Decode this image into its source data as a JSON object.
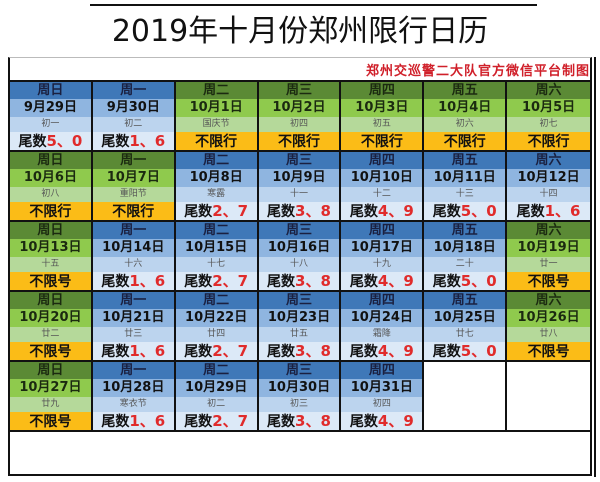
{
  "header": {
    "title": "2019年十月份郑州限行日历",
    "credit": "郑州交巡警二大队官方微信平台制图"
  },
  "colors": {
    "restricted_header": "#3f78b8",
    "restricted_date": "#8fb5e0",
    "free_header": "#5b8a35",
    "free_date": "#8fca4d",
    "free_status": "#fbbc17",
    "plate_number": "#e02b2b",
    "credit": "#d0202a"
  },
  "calendar": {
    "rows": [
      [
        {
          "weekday": "周日",
          "date": "9月29日",
          "lunar": "初一",
          "theme": "blue",
          "prefix": "尾数",
          "nums": "5、0"
        },
        {
          "weekday": "周一",
          "date": "9月30日",
          "lunar": "初二",
          "theme": "blue",
          "prefix": "尾数",
          "nums": "1、6"
        },
        {
          "weekday": "周二",
          "date": "10月1日",
          "lunar": "国庆节",
          "theme": "green",
          "prefix": "不限行",
          "nums": ""
        },
        {
          "weekday": "周三",
          "date": "10月2日",
          "lunar": "初四",
          "theme": "green",
          "prefix": "不限行",
          "nums": ""
        },
        {
          "weekday": "周四",
          "date": "10月3日",
          "lunar": "初五",
          "theme": "green",
          "prefix": "不限行",
          "nums": ""
        },
        {
          "weekday": "周五",
          "date": "10月4日",
          "lunar": "初六",
          "theme": "green",
          "prefix": "不限行",
          "nums": ""
        },
        {
          "weekday": "周六",
          "date": "10月5日",
          "lunar": "初七",
          "theme": "green",
          "prefix": "不限行",
          "nums": ""
        }
      ],
      [
        {
          "weekday": "周日",
          "date": "10月6日",
          "lunar": "初八",
          "theme": "green",
          "prefix": "不限行",
          "nums": ""
        },
        {
          "weekday": "周一",
          "date": "10月7日",
          "lunar": "重阳节",
          "theme": "green",
          "prefix": "不限行",
          "nums": ""
        },
        {
          "weekday": "周二",
          "date": "10月8日",
          "lunar": "寒露",
          "theme": "blue",
          "prefix": "尾数",
          "nums": "2、7"
        },
        {
          "weekday": "周三",
          "date": "10月9日",
          "lunar": "十一",
          "theme": "blue",
          "prefix": "尾数",
          "nums": "3、8"
        },
        {
          "weekday": "周四",
          "date": "10月10日",
          "lunar": "十二",
          "theme": "blue",
          "prefix": "尾数",
          "nums": "4、9"
        },
        {
          "weekday": "周五",
          "date": "10月11日",
          "lunar": "十三",
          "theme": "blue",
          "prefix": "尾数",
          "nums": "5、0"
        },
        {
          "weekday": "周六",
          "date": "10月12日",
          "lunar": "十四",
          "theme": "blue",
          "prefix": "尾数",
          "nums": "1、6"
        }
      ],
      [
        {
          "weekday": "周日",
          "date": "10月13日",
          "lunar": "十五",
          "theme": "green",
          "prefix": "不限号",
          "nums": ""
        },
        {
          "weekday": "周一",
          "date": "10月14日",
          "lunar": "十六",
          "theme": "blue",
          "prefix": "尾数",
          "nums": "1、6"
        },
        {
          "weekday": "周二",
          "date": "10月15日",
          "lunar": "十七",
          "theme": "blue",
          "prefix": "尾数",
          "nums": "2、7"
        },
        {
          "weekday": "周三",
          "date": "10月16日",
          "lunar": "十八",
          "theme": "blue",
          "prefix": "尾数",
          "nums": "3、8"
        },
        {
          "weekday": "周四",
          "date": "10月17日",
          "lunar": "十九",
          "theme": "blue",
          "prefix": "尾数",
          "nums": "4、9"
        },
        {
          "weekday": "周五",
          "date": "10月18日",
          "lunar": "二十",
          "theme": "blue",
          "prefix": "尾数",
          "nums": "5、0"
        },
        {
          "weekday": "周六",
          "date": "10月19日",
          "lunar": "廿一",
          "theme": "green",
          "prefix": "不限号",
          "nums": ""
        }
      ],
      [
        {
          "weekday": "周日",
          "date": "10月20日",
          "lunar": "廿二",
          "theme": "green",
          "prefix": "不限号",
          "nums": ""
        },
        {
          "weekday": "周一",
          "date": "10月21日",
          "lunar": "廿三",
          "theme": "blue",
          "prefix": "尾数",
          "nums": "1、6"
        },
        {
          "weekday": "周二",
          "date": "10月22日",
          "lunar": "廿四",
          "theme": "blue",
          "prefix": "尾数",
          "nums": "2、7"
        },
        {
          "weekday": "周三",
          "date": "10月23日",
          "lunar": "廿五",
          "theme": "blue",
          "prefix": "尾数",
          "nums": "3、8"
        },
        {
          "weekday": "周四",
          "date": "10月24日",
          "lunar": "霜降",
          "theme": "blue",
          "prefix": "尾数",
          "nums": "4、9"
        },
        {
          "weekday": "周五",
          "date": "10月25日",
          "lunar": "廿七",
          "theme": "blue",
          "prefix": "尾数",
          "nums": "5、0"
        },
        {
          "weekday": "周六",
          "date": "10月26日",
          "lunar": "廿八",
          "theme": "green",
          "prefix": "不限号",
          "nums": ""
        }
      ],
      [
        {
          "weekday": "周日",
          "date": "10月27日",
          "lunar": "廿九",
          "theme": "green",
          "prefix": "不限号",
          "nums": ""
        },
        {
          "weekday": "周一",
          "date": "10月28日",
          "lunar": "寒衣节",
          "theme": "blue",
          "prefix": "尾数",
          "nums": "1、6"
        },
        {
          "weekday": "周二",
          "date": "10月29日",
          "lunar": "初二",
          "theme": "blue",
          "prefix": "尾数",
          "nums": "2、7"
        },
        {
          "weekday": "周三",
          "date": "10月30日",
          "lunar": "初三",
          "theme": "blue",
          "prefix": "尾数",
          "nums": "3、8"
        },
        {
          "weekday": "周四",
          "date": "10月31日",
          "lunar": "初四",
          "theme": "blue",
          "prefix": "尾数",
          "nums": "4、9"
        },
        null,
        null
      ]
    ]
  }
}
